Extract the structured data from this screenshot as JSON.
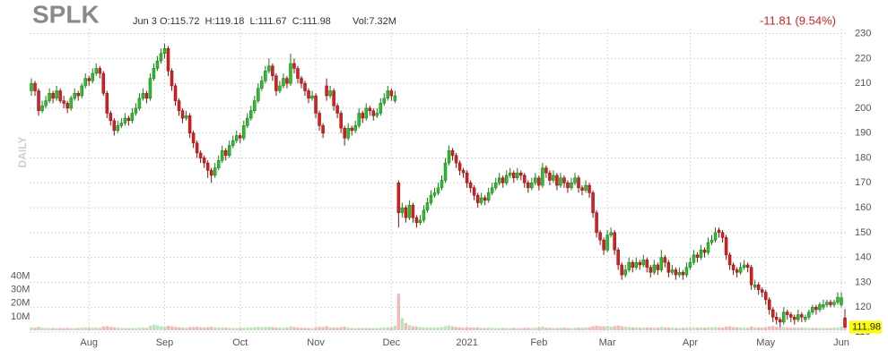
{
  "chart_data": {
    "type": "candlestick",
    "title": "SPLK",
    "date": "Jun 3",
    "ohlc_label": "O:115.72  H:119.18  L:111.67  C:111.98",
    "volume_label": "Vol:7.32M",
    "change_label": "-11.81 (9.54%)",
    "y_label": "DAILY",
    "up_color": "#2bbf2b",
    "down_color": "#d42020",
    "grid": true,
    "ylim": [
      110,
      232
    ],
    "yticks": [
      110,
      120,
      130,
      140,
      150,
      160,
      170,
      180,
      190,
      200,
      210,
      220,
      230
    ],
    "y2lim": [
      0,
      45
    ],
    "y2ticks": [
      {
        "value": 10,
        "label": "10M"
      },
      {
        "value": 20,
        "label": "20M"
      },
      {
        "value": 30,
        "label": "30M"
      },
      {
        "value": 40,
        "label": "40M"
      }
    ],
    "xticks": [
      {
        "value": 16,
        "label": "Aug"
      },
      {
        "value": 37,
        "label": "Sep"
      },
      {
        "value": 58,
        "label": "Oct"
      },
      {
        "value": 79,
        "label": "Nov"
      },
      {
        "value": 100,
        "label": "Dec"
      },
      {
        "value": 121,
        "label": "2021"
      },
      {
        "value": 141,
        "label": "Feb"
      },
      {
        "value": 160,
        "label": "Mar"
      },
      {
        "value": 183,
        "label": "Apr"
      },
      {
        "value": 204,
        "label": "May"
      },
      {
        "value": 225,
        "label": "Jun"
      }
    ],
    "candles": [
      [
        207,
        212,
        205,
        210
      ],
      [
        210,
        211,
        205,
        207
      ],
      [
        207,
        208,
        197,
        199
      ],
      [
        199,
        203,
        198,
        201
      ],
      [
        201,
        205,
        200,
        203
      ],
      [
        203,
        208,
        202,
        206
      ],
      [
        206,
        207,
        202,
        204
      ],
      [
        204,
        209,
        203,
        207
      ],
      [
        207,
        208,
        202,
        203
      ],
      [
        203,
        205,
        200,
        202
      ],
      [
        202,
        203,
        198,
        200
      ],
      [
        200,
        205,
        199,
        204
      ],
      [
        204,
        208,
        203,
        206
      ],
      [
        206,
        207,
        203,
        205
      ],
      [
        205,
        210,
        204,
        209
      ],
      [
        209,
        214,
        208,
        212
      ],
      [
        212,
        213,
        209,
        211
      ],
      [
        211,
        216,
        210,
        214
      ],
      [
        214,
        218,
        213,
        216
      ],
      [
        216,
        217,
        212,
        214
      ],
      [
        214,
        215,
        205,
        206
      ],
      [
        206,
        207,
        196,
        198
      ],
      [
        198,
        199,
        193,
        195
      ],
      [
        195,
        196,
        189,
        191
      ],
      [
        191,
        195,
        190,
        193
      ],
      [
        193,
        196,
        192,
        194
      ],
      [
        194,
        198,
        193,
        196
      ],
      [
        196,
        197,
        193,
        195
      ],
      [
        195,
        200,
        194,
        198
      ],
      [
        198,
        202,
        197,
        200
      ],
      [
        200,
        206,
        199,
        204
      ],
      [
        204,
        208,
        203,
        206
      ],
      [
        206,
        207,
        202,
        204
      ],
      [
        204,
        214,
        203,
        212
      ],
      [
        212,
        218,
        211,
        216
      ],
      [
        216,
        221,
        215,
        219
      ],
      [
        219,
        224,
        218,
        222
      ],
      [
        222,
        226,
        220,
        224
      ],
      [
        224,
        225,
        213,
        215
      ],
      [
        215,
        216,
        207,
        209
      ],
      [
        209,
        210,
        201,
        203
      ],
      [
        203,
        204,
        197,
        199
      ],
      [
        199,
        200,
        194,
        196
      ],
      [
        196,
        199,
        195,
        197
      ],
      [
        197,
        198,
        188,
        190
      ],
      [
        190,
        191,
        184,
        186
      ],
      [
        186,
        187,
        180,
        182
      ],
      [
        182,
        183,
        178,
        180
      ],
      [
        180,
        181,
        176,
        178
      ],
      [
        178,
        179,
        172,
        175
      ],
      [
        175,
        176,
        170,
        173
      ],
      [
        173,
        178,
        172,
        176
      ],
      [
        176,
        181,
        175,
        179
      ],
      [
        179,
        185,
        178,
        183
      ],
      [
        183,
        184,
        179,
        181
      ],
      [
        181,
        187,
        180,
        185
      ],
      [
        185,
        189,
        184,
        187
      ],
      [
        187,
        191,
        186,
        189
      ],
      [
        189,
        190,
        186,
        188
      ],
      [
        188,
        195,
        187,
        193
      ],
      [
        193,
        198,
        192,
        196
      ],
      [
        196,
        201,
        195,
        199
      ],
      [
        199,
        205,
        198,
        203
      ],
      [
        203,
        210,
        202,
        208
      ],
      [
        208,
        213,
        207,
        211
      ],
      [
        211,
        217,
        210,
        215
      ],
      [
        215,
        220,
        214,
        217
      ],
      [
        217,
        218,
        211,
        213
      ],
      [
        213,
        214,
        205,
        207
      ],
      [
        207,
        211,
        206,
        209
      ],
      [
        209,
        214,
        208,
        212
      ],
      [
        212,
        213,
        208,
        210
      ],
      [
        210,
        222,
        209,
        218
      ],
      [
        218,
        220,
        214,
        216
      ],
      [
        216,
        217,
        210,
        212
      ],
      [
        212,
        213,
        208,
        210
      ],
      [
        210,
        211,
        205,
        207
      ],
      [
        207,
        208,
        202,
        204
      ],
      [
        204,
        207,
        203,
        205
      ],
      [
        205,
        206,
        196,
        198
      ],
      [
        198,
        199,
        191,
        193
      ],
      [
        193,
        194,
        188,
        190
      ],
      [
        209,
        212,
        203,
        205
      ],
      [
        205,
        209,
        204,
        207
      ],
      [
        207,
        208,
        199,
        201
      ],
      [
        201,
        202,
        196,
        198
      ],
      [
        198,
        199,
        190,
        192
      ],
      [
        192,
        193,
        185,
        188
      ],
      [
        188,
        194,
        187,
        192
      ],
      [
        192,
        193,
        189,
        191
      ],
      [
        191,
        195,
        190,
        193
      ],
      [
        193,
        200,
        192,
        198
      ],
      [
        198,
        199,
        194,
        196
      ],
      [
        196,
        202,
        195,
        200
      ],
      [
        200,
        201,
        197,
        199
      ],
      [
        199,
        200,
        195,
        197
      ],
      [
        197,
        200,
        196,
        198
      ],
      [
        198,
        204,
        197,
        202
      ],
      [
        202,
        206,
        201,
        204
      ],
      [
        204,
        209,
        203,
        207
      ],
      [
        207,
        208,
        203,
        205
      ],
      [
        203,
        207,
        202,
        205
      ],
      [
        170,
        171,
        152,
        158
      ],
      [
        158,
        162,
        156,
        160
      ],
      [
        160,
        161,
        154,
        156
      ],
      [
        156,
        163,
        155,
        161
      ],
      [
        161,
        162,
        154,
        156
      ],
      [
        156,
        157,
        152,
        154
      ],
      [
        154,
        157,
        153,
        155
      ],
      [
        155,
        161,
        154,
        159
      ],
      [
        159,
        164,
        158,
        162
      ],
      [
        162,
        167,
        161,
        165
      ],
      [
        165,
        168,
        164,
        166
      ],
      [
        166,
        170,
        165,
        168
      ],
      [
        168,
        173,
        167,
        171
      ],
      [
        171,
        180,
        170,
        178
      ],
      [
        178,
        185,
        177,
        183
      ],
      [
        183,
        184,
        179,
        181
      ],
      [
        181,
        182,
        176,
        178
      ],
      [
        178,
        179,
        173,
        175
      ],
      [
        175,
        176,
        172,
        174
      ],
      [
        174,
        175,
        168,
        170
      ],
      [
        170,
        171,
        166,
        168
      ],
      [
        168,
        169,
        163,
        165
      ],
      [
        165,
        166,
        160,
        162
      ],
      [
        162,
        166,
        161,
        164
      ],
      [
        164,
        165,
        161,
        163
      ],
      [
        163,
        168,
        162,
        166
      ],
      [
        166,
        170,
        165,
        168
      ],
      [
        168,
        172,
        167,
        170
      ],
      [
        170,
        174,
        169,
        172
      ],
      [
        172,
        173,
        168,
        170
      ],
      [
        170,
        175,
        169,
        173
      ],
      [
        173,
        176,
        172,
        174
      ],
      [
        174,
        175,
        170,
        172
      ],
      [
        172,
        176,
        171,
        174
      ],
      [
        174,
        175,
        171,
        173
      ],
      [
        173,
        174,
        168,
        170
      ],
      [
        170,
        171,
        166,
        168
      ],
      [
        168,
        172,
        167,
        170
      ],
      [
        170,
        174,
        169,
        172
      ],
      [
        172,
        173,
        167,
        169
      ],
      [
        169,
        178,
        168,
        176
      ],
      [
        176,
        177,
        172,
        174
      ],
      [
        174,
        175,
        169,
        171
      ],
      [
        171,
        175,
        170,
        173
      ],
      [
        173,
        174,
        167,
        169
      ],
      [
        169,
        174,
        168,
        172
      ],
      [
        172,
        173,
        168,
        170
      ],
      [
        170,
        171,
        166,
        168
      ],
      [
        168,
        172,
        167,
        170
      ],
      [
        170,
        174,
        169,
        172
      ],
      [
        172,
        173,
        166,
        168
      ],
      [
        168,
        169,
        165,
        167
      ],
      [
        167,
        171,
        166,
        169
      ],
      [
        169,
        170,
        164,
        166
      ],
      [
        166,
        167,
        156,
        158
      ],
      [
        158,
        159,
        148,
        150
      ],
      [
        150,
        151,
        145,
        147
      ],
      [
        147,
        148,
        141,
        143
      ],
      [
        143,
        151,
        142,
        149
      ],
      [
        149,
        152,
        148,
        150
      ],
      [
        150,
        151,
        141,
        143
      ],
      [
        143,
        144,
        135,
        137
      ],
      [
        137,
        138,
        131,
        133
      ],
      [
        133,
        137,
        132,
        135
      ],
      [
        135,
        140,
        134,
        138
      ],
      [
        138,
        139,
        134,
        136
      ],
      [
        136,
        140,
        135,
        138
      ],
      [
        138,
        139,
        135,
        137
      ],
      [
        137,
        141,
        136,
        139
      ],
      [
        139,
        140,
        134,
        136
      ],
      [
        136,
        137,
        132,
        134
      ],
      [
        134,
        139,
        133,
        137
      ],
      [
        137,
        138,
        133,
        135
      ],
      [
        135,
        143,
        134,
        140
      ],
      [
        140,
        141,
        136,
        138
      ],
      [
        138,
        139,
        132,
        134
      ],
      [
        134,
        137,
        133,
        135
      ],
      [
        135,
        136,
        131,
        133
      ],
      [
        133,
        136,
        132,
        134
      ],
      [
        134,
        135,
        131,
        133
      ],
      [
        133,
        138,
        132,
        136
      ],
      [
        136,
        140,
        135,
        138
      ],
      [
        138,
        143,
        137,
        141
      ],
      [
        141,
        142,
        138,
        140
      ],
      [
        140,
        145,
        139,
        143
      ],
      [
        143,
        144,
        140,
        142
      ],
      [
        142,
        148,
        141,
        146
      ],
      [
        146,
        149,
        145,
        147
      ],
      [
        147,
        152,
        146,
        150
      ],
      [
        151,
        152,
        148,
        150
      ],
      [
        150,
        151,
        146,
        148
      ],
      [
        148,
        149,
        139,
        141
      ],
      [
        141,
        142,
        135,
        137
      ],
      [
        137,
        138,
        133,
        135
      ],
      [
        135,
        136,
        132,
        134
      ],
      [
        134,
        138,
        133,
        136
      ],
      [
        136,
        139,
        135,
        137
      ],
      [
        137,
        138,
        134,
        136
      ],
      [
        136,
        137,
        127,
        129
      ],
      [
        128,
        131,
        127,
        129
      ],
      [
        129,
        130,
        125,
        127
      ],
      [
        127,
        128,
        124,
        126
      ],
      [
        126,
        127,
        121,
        123
      ],
      [
        123,
        124,
        117,
        119
      ],
      [
        119,
        120,
        114,
        116
      ],
      [
        116,
        118,
        113,
        115
      ],
      [
        115,
        116,
        112,
        114
      ],
      [
        114,
        120,
        113,
        118
      ],
      [
        118,
        119,
        115,
        117
      ],
      [
        117,
        118,
        114,
        116
      ],
      [
        116,
        117,
        113,
        115
      ],
      [
        115,
        119,
        114,
        117
      ],
      [
        117,
        118,
        114,
        116
      ],
      [
        115,
        117,
        114,
        116
      ],
      [
        116,
        119,
        115,
        118
      ],
      [
        118,
        121,
        117,
        120
      ],
      [
        120,
        121,
        117,
        119
      ],
      [
        119,
        122,
        118,
        121
      ],
      [
        120,
        123,
        119,
        121
      ],
      [
        121,
        123,
        120,
        122
      ],
      [
        122,
        123,
        120,
        121
      ],
      [
        121,
        123,
        120,
        122
      ],
      [
        122,
        126,
        121,
        124
      ],
      [
        121,
        126,
        120,
        123.79
      ],
      [
        115.72,
        119.18,
        111.67,
        111.98
      ]
    ],
    "volumes": [
      2.1,
      1.8,
      2.6,
      1.9,
      1.7,
      1.6,
      1.8,
      1.5,
      1.7,
      1.6,
      1.8,
      1.6,
      1.5,
      1.7,
      1.9,
      2.2,
      1.8,
      1.9,
      2.0,
      1.7,
      2.8,
      3.0,
      2.4,
      2.2,
      1.9,
      1.7,
      1.6,
      1.5,
      1.8,
      1.6,
      1.9,
      2.0,
      1.7,
      3.2,
      4.1,
      3.6,
      2.9,
      2.6,
      3.4,
      2.8,
      2.5,
      2.2,
      2.0,
      1.8,
      2.3,
      2.4,
      2.6,
      2.2,
      2.0,
      2.3,
      2.5,
      2.1,
      2.0,
      2.2,
      1.9,
      1.8,
      1.7,
      1.6,
      1.8,
      1.9,
      2.0,
      2.1,
      2.3,
      2.5,
      2.2,
      2.4,
      2.6,
      2.3,
      2.1,
      1.9,
      1.8,
      2.0,
      2.9,
      2.4,
      2.0,
      1.9,
      1.8,
      1.7,
      1.6,
      2.2,
      2.5,
      2.4,
      3.1,
      2.2,
      2.0,
      1.9,
      2.3,
      2.6,
      1.9,
      1.7,
      1.6,
      1.8,
      1.7,
      1.9,
      1.6,
      1.5,
      1.7,
      1.8,
      2.0,
      2.3,
      2.1,
      3.2,
      27.0,
      9.0,
      5.2,
      3.8,
      3.0,
      2.6,
      2.4,
      2.2,
      2.0,
      2.1,
      1.9,
      2.0,
      2.3,
      3.1,
      3.6,
      2.8,
      2.4,
      2.2,
      1.8,
      2.0,
      2.1,
      1.9,
      2.2,
      1.8,
      1.7,
      1.9,
      1.8,
      1.7,
      1.6,
      1.8,
      1.7,
      1.6,
      1.9,
      1.7,
      1.6,
      1.8,
      1.9,
      1.7,
      1.8,
      2.2,
      2.6,
      2.0,
      1.9,
      1.8,
      1.7,
      1.8,
      1.9,
      1.7,
      1.6,
      1.8,
      1.9,
      1.7,
      2.0,
      2.2,
      3.0,
      3.4,
      2.9,
      2.8,
      3.2,
      2.6,
      3.1,
      3.5,
      3.0,
      2.6,
      2.4,
      2.2,
      2.1,
      2.0,
      1.9,
      2.1,
      2.0,
      1.8,
      1.9,
      2.5,
      2.1,
      2.2,
      1.9,
      1.8,
      1.7,
      1.8,
      1.9,
      2.0,
      2.2,
      2.0,
      2.1,
      1.9,
      2.3,
      2.2,
      2.4,
      2.1,
      2.0,
      2.6,
      2.8,
      2.3,
      2.1,
      2.0,
      1.9,
      1.8,
      2.7,
      2.2,
      2.1,
      2.0,
      2.3,
      2.8,
      3.1,
      2.6,
      2.4,
      2.5,
      2.1,
      2.0,
      1.9,
      2.0,
      1.8,
      1.9,
      1.8,
      1.9,
      1.7,
      1.8,
      1.7,
      1.8,
      1.7,
      1.9,
      2.0,
      2.6,
      7.32
    ]
  }
}
